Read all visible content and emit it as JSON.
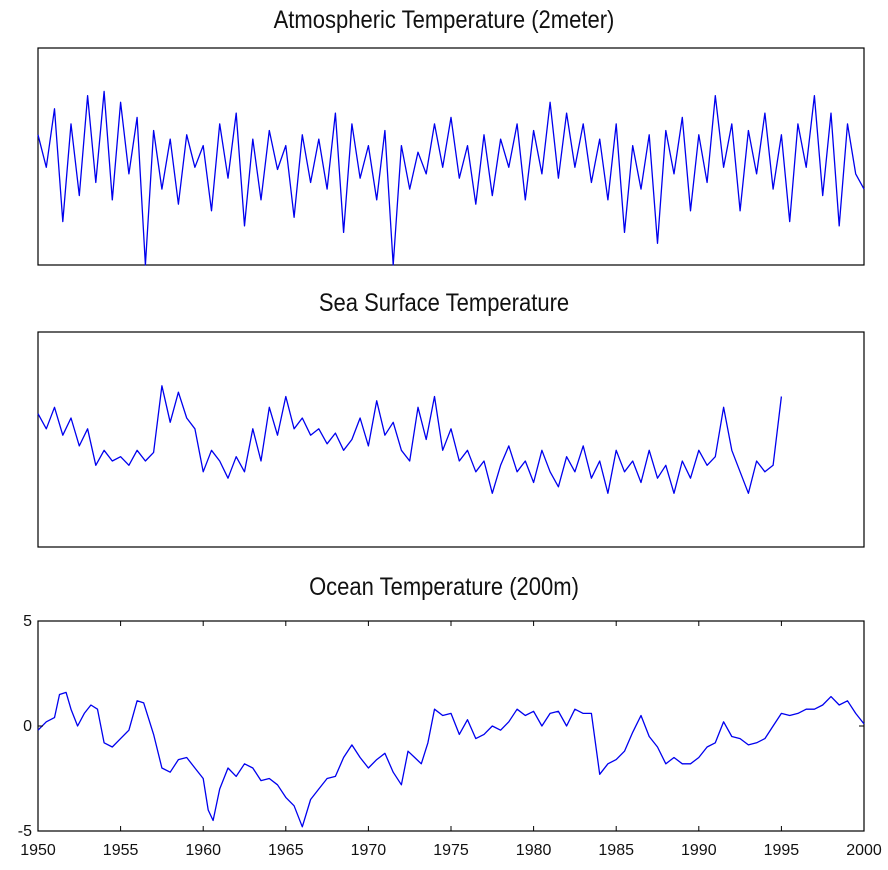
{
  "chart_data": [
    {
      "type": "line",
      "title": "Atmospheric Temperature (2meter)",
      "xlabel": "",
      "ylabel": "",
      "xlim": [
        1950,
        2000
      ],
      "ylim": [
        -5,
        5
      ],
      "grid": false,
      "x_ticks": [],
      "y_ticks": [],
      "color": "#0000ee",
      "series": [
        {
          "x": [
            1950,
            1950.5,
            1951,
            1951.5,
            1952,
            1952.5,
            1953,
            1953.5,
            1954,
            1954.5,
            1955,
            1955.5,
            1956,
            1956.5,
            1957,
            1957.5,
            1958,
            1958.5,
            1959,
            1959.5,
            1960,
            1960.5,
            1961,
            1961.5,
            1962,
            1962.5,
            1963,
            1963.5,
            1964,
            1964.5,
            1965,
            1965.5,
            1966,
            1966.5,
            1967,
            1967.5,
            1968,
            1968.5,
            1969,
            1969.5,
            1970,
            1970.5,
            1971,
            1971.5,
            1972,
            1972.5,
            1973,
            1973.5,
            1974,
            1974.5,
            1975,
            1975.5,
            1976,
            1976.5,
            1977,
            1977.5,
            1978,
            1978.5,
            1979,
            1979.5,
            1980,
            1980.5,
            1981,
            1981.5,
            1982,
            1982.5,
            1983,
            1983.5,
            1984,
            1984.5,
            1985,
            1985.5,
            1986,
            1986.5,
            1987,
            1987.5,
            1988,
            1988.5,
            1989,
            1989.5,
            1990,
            1990.5,
            1991,
            1991.5,
            1992,
            1992.5,
            1993,
            1993.5,
            1994,
            1994.5,
            1995,
            1995.5,
            1996,
            1996.5,
            1997,
            1997.5,
            1998,
            1998.5,
            1999,
            1999.5,
            2000
          ],
          "y": [
            1.0,
            -0.5,
            2.2,
            -3.0,
            1.5,
            -1.8,
            2.8,
            -1.2,
            3.0,
            -2.0,
            2.5,
            -0.8,
            1.8,
            -5.0,
            1.2,
            -1.5,
            0.8,
            -2.2,
            1.0,
            -0.5,
            0.5,
            -2.5,
            1.5,
            -1.0,
            2.0,
            -3.2,
            0.8,
            -2.0,
            1.2,
            -0.6,
            0.5,
            -2.8,
            1.0,
            -1.2,
            0.8,
            -1.5,
            2.0,
            -3.5,
            1.5,
            -1.0,
            0.5,
            -2.0,
            1.2,
            -5.0,
            0.5,
            -1.5,
            0.2,
            -0.8,
            1.5,
            -0.5,
            1.8,
            -1.0,
            0.5,
            -2.2,
            1.0,
            -1.8,
            0.8,
            -0.5,
            1.5,
            -2.0,
            1.2,
            -0.8,
            2.5,
            -1.0,
            2.0,
            -0.5,
            1.5,
            -1.2,
            0.8,
            -2.0,
            1.5,
            -3.5,
            0.5,
            -1.5,
            1.0,
            -4.0,
            1.2,
            -0.8,
            1.8,
            -2.5,
            1.0,
            -1.2,
            2.8,
            -0.5,
            1.5,
            -2.5,
            1.2,
            -0.8,
            2.0,
            -1.5,
            1.0,
            -3.0,
            1.5,
            -0.5,
            2.8,
            -1.8,
            2.0,
            -3.2,
            1.5,
            -0.8,
            -1.5
          ]
        }
      ]
    },
    {
      "type": "line",
      "title": "Sea Surface Temperature",
      "xlabel": "",
      "ylabel": "",
      "xlim": [
        1950,
        2000
      ],
      "ylim": [
        -5,
        5
      ],
      "grid": false,
      "x_ticks": [],
      "y_ticks": [],
      "color": "#0000ee",
      "series": [
        {
          "x": [
            1950,
            1950.5,
            1951,
            1951.5,
            1952,
            1952.5,
            1953,
            1953.5,
            1954,
            1954.5,
            1955,
            1955.5,
            1956,
            1956.5,
            1957,
            1957.5,
            1958,
            1958.5,
            1959,
            1959.5,
            1960,
            1960.5,
            1961,
            1961.5,
            1962,
            1962.5,
            1963,
            1963.5,
            1964,
            1964.5,
            1965,
            1965.5,
            1966,
            1966.5,
            1967,
            1967.5,
            1968,
            1968.5,
            1969,
            1969.5,
            1970,
            1970.5,
            1971,
            1971.5,
            1972,
            1972.5,
            1973,
            1973.5,
            1974,
            1974.5,
            1975,
            1975.5,
            1976,
            1976.5,
            1977,
            1977.5,
            1978,
            1978.5,
            1979,
            1979.5,
            1980,
            1980.5,
            1981,
            1981.5,
            1982,
            1982.5,
            1983,
            1983.5,
            1984,
            1984.5,
            1985,
            1985.5,
            1986,
            1986.5,
            1987,
            1987.5,
            1988,
            1988.5,
            1989,
            1989.5,
            1990,
            1990.5,
            1991,
            1991.5,
            1992,
            1992.5,
            1993,
            1993.5,
            1994,
            1994.5,
            1995
          ],
          "y": [
            1.2,
            0.5,
            1.5,
            0.2,
            1.0,
            -0.3,
            0.5,
            -1.2,
            -0.5,
            -1.0,
            -0.8,
            -1.2,
            -0.5,
            -1.0,
            -0.6,
            2.5,
            0.8,
            2.2,
            1.0,
            0.5,
            -1.5,
            -0.5,
            -1.0,
            -1.8,
            -0.8,
            -1.5,
            0.5,
            -1.0,
            1.5,
            0.2,
            2.0,
            0.5,
            1.0,
            0.2,
            0.5,
            -0.2,
            0.3,
            -0.5,
            0.0,
            1.0,
            -0.3,
            1.8,
            0.2,
            0.8,
            -0.5,
            -1.0,
            1.5,
            0.0,
            2.0,
            -0.5,
            0.5,
            -1.0,
            -0.5,
            -1.5,
            -1.0,
            -2.5,
            -1.2,
            -0.3,
            -1.5,
            -1.0,
            -2.0,
            -0.5,
            -1.5,
            -2.2,
            -0.8,
            -1.5,
            -0.3,
            -1.8,
            -1.0,
            -2.5,
            -0.5,
            -1.5,
            -1.0,
            -2.0,
            -0.5,
            -1.8,
            -1.2,
            -2.5,
            -1.0,
            -1.8,
            -0.5,
            -1.2,
            -0.8,
            1.5,
            -0.5,
            -1.5,
            -2.5,
            -1.0,
            -1.5,
            -1.2,
            2.0
          ]
        }
      ]
    },
    {
      "type": "line",
      "title": "Ocean Temperature (200m)",
      "xlabel": "",
      "ylabel": "",
      "xlim": [
        1950,
        2000
      ],
      "ylim": [
        -5,
        5
      ],
      "grid": false,
      "x_ticks": [
        "1950",
        "1955",
        "1960",
        "1965",
        "1970",
        "1975",
        "1980",
        "1985",
        "1990",
        "1995",
        "2000"
      ],
      "y_ticks": [
        "5",
        "0",
        "-5"
      ],
      "color": "#0000ee",
      "series": [
        {
          "x": [
            1950,
            1950.5,
            1951,
            1951.3,
            1951.7,
            1952,
            1952.4,
            1952.8,
            1953.2,
            1953.6,
            1954,
            1954.5,
            1955,
            1955.5,
            1956,
            1956.4,
            1957,
            1957.5,
            1958,
            1958.5,
            1959,
            1959.5,
            1960,
            1960.3,
            1960.6,
            1961,
            1961.5,
            1962,
            1962.5,
            1963,
            1963.5,
            1964,
            1964.5,
            1965,
            1965.5,
            1966,
            1966.5,
            1967,
            1967.5,
            1968,
            1968.5,
            1969,
            1969.5,
            1970,
            1970.5,
            1971,
            1971.5,
            1972,
            1972.4,
            1972.8,
            1973.2,
            1973.6,
            1974,
            1974.5,
            1975,
            1975.5,
            1976,
            1976.5,
            1977,
            1977.5,
            1978,
            1978.5,
            1979,
            1979.5,
            1980,
            1980.5,
            1981,
            1981.5,
            1982,
            1982.5,
            1983,
            1983.5,
            1984,
            1984.5,
            1985,
            1985.5,
            1986,
            1986.5,
            1987,
            1987.5,
            1988,
            1988.5,
            1989,
            1989.5,
            1990,
            1990.5,
            1991,
            1991.5,
            1992,
            1992.5,
            1993,
            1993.5,
            1994,
            1994.5,
            1995,
            1995.5,
            1996,
            1996.5,
            1997,
            1997.5,
            1998,
            1998.5,
            1999,
            1999.5,
            2000
          ],
          "y": [
            -0.2,
            0.2,
            0.4,
            1.5,
            1.6,
            0.8,
            0.0,
            0.6,
            1.0,
            0.8,
            -0.8,
            -1.0,
            -0.6,
            -0.2,
            1.2,
            1.1,
            -0.4,
            -2.0,
            -2.2,
            -1.6,
            -1.5,
            -2.0,
            -2.5,
            -4.0,
            -4.5,
            -3.0,
            -2.0,
            -2.4,
            -1.8,
            -2.0,
            -2.6,
            -2.5,
            -2.8,
            -3.4,
            -3.8,
            -4.8,
            -3.5,
            -3.0,
            -2.5,
            -2.4,
            -1.5,
            -0.9,
            -1.5,
            -2.0,
            -1.6,
            -1.3,
            -2.2,
            -2.8,
            -1.2,
            -1.5,
            -1.8,
            -0.8,
            0.8,
            0.5,
            0.6,
            -0.4,
            0.3,
            -0.6,
            -0.4,
            0.0,
            -0.2,
            0.2,
            0.8,
            0.5,
            0.7,
            0.0,
            0.6,
            0.7,
            0.0,
            0.8,
            0.6,
            0.6,
            -2.3,
            -1.8,
            -1.6,
            -1.2,
            -0.3,
            0.5,
            -0.5,
            -1.0,
            -1.8,
            -1.5,
            -1.8,
            -1.8,
            -1.5,
            -1.0,
            -0.8,
            0.2,
            -0.5,
            -0.6,
            -0.9,
            -0.8,
            -0.6,
            0.0,
            0.6,
            0.5,
            0.6,
            0.8,
            0.8,
            1.0,
            1.4,
            1.0,
            1.2,
            0.6,
            0.1
          ]
        }
      ]
    }
  ]
}
